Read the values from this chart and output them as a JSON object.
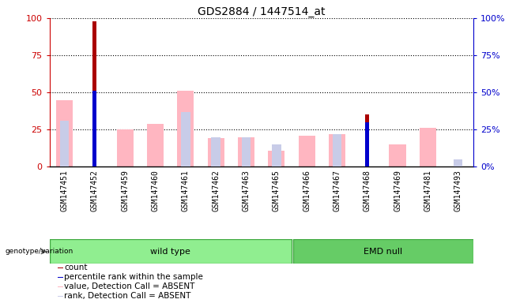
{
  "title": "GDS2884 / 1447514_at",
  "samples": [
    "GSM147451",
    "GSM147452",
    "GSM147459",
    "GSM147460",
    "GSM147461",
    "GSM147462",
    "GSM147463",
    "GSM147465",
    "GSM147466",
    "GSM147467",
    "GSM147468",
    "GSM147469",
    "GSM147481",
    "GSM147493"
  ],
  "wt_count": 8,
  "count": [
    0,
    98,
    0,
    0,
    0,
    0,
    0,
    0,
    0,
    0,
    35,
    0,
    0,
    0
  ],
  "percentile": [
    0,
    51,
    0,
    0,
    0,
    0,
    0,
    0,
    0,
    0,
    30,
    0,
    0,
    0
  ],
  "value_absent": [
    45,
    0,
    25,
    29,
    51,
    19,
    20,
    11,
    21,
    22,
    0,
    15,
    26,
    0
  ],
  "rank_absent": [
    31,
    0,
    0,
    0,
    37,
    20,
    20,
    15,
    0,
    22,
    0,
    0,
    0,
    5
  ],
  "ylim": [
    0,
    100
  ],
  "yticks": [
    0,
    25,
    50,
    75,
    100
  ],
  "count_color": "#AA0000",
  "percentile_color": "#0000CC",
  "value_absent_color": "#FFB6C1",
  "rank_absent_color": "#C8CCE8",
  "bg_color": "#D3D3D3",
  "group_wt_color": "#90EE90",
  "group_emd_color": "#66CC66",
  "ylabel_left_color": "#CC0000",
  "ylabel_right_color": "#0000CC",
  "title_fontsize": 10,
  "tick_fontsize": 7,
  "label_fontsize": 7.5
}
